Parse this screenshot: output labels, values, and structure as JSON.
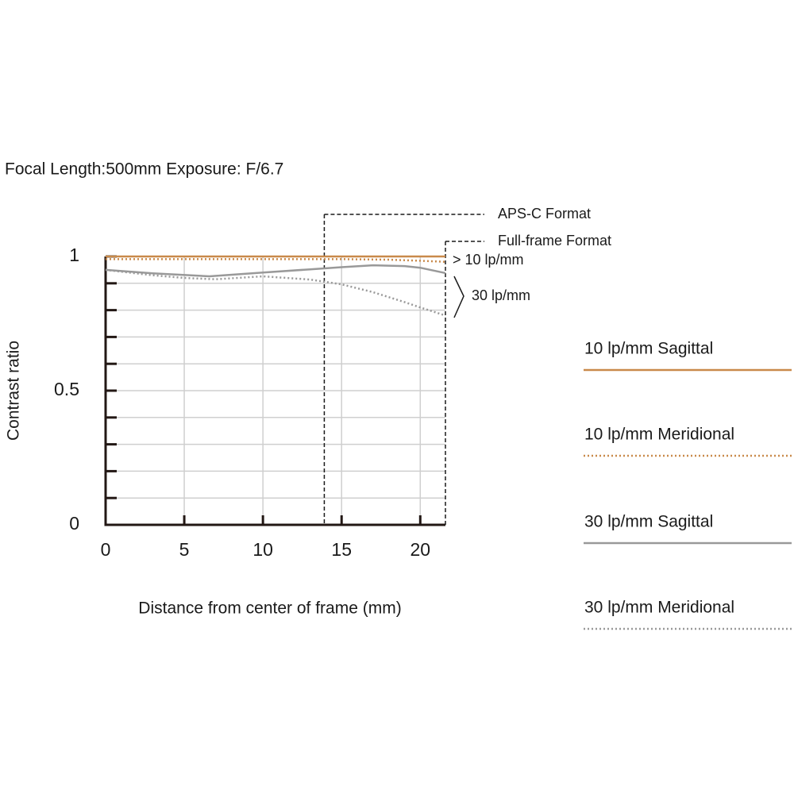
{
  "chart_data": {
    "type": "line",
    "title": "Focal Length:500mm  Exposure: F/6.7",
    "x_label": "Distance from center of frame (mm)",
    "y_label": "Contrast ratio",
    "xlim": [
      0,
      21.6
    ],
    "ylim": [
      0,
      1
    ],
    "xticks": [
      0,
      5,
      10,
      15,
      20
    ],
    "yticks": [
      0,
      0.5,
      1
    ],
    "yminorticks": [
      0.1,
      0.2,
      0.3,
      0.4,
      0.6,
      0.7,
      0.8,
      0.9
    ],
    "grid": true,
    "legend": "right",
    "series": [
      {
        "name": "10 lp/mm Sagittal",
        "color": "#c98a4b",
        "dash": "solid",
        "x": [
          0,
          5,
          10,
          15,
          20,
          21.6
        ],
        "values": [
          1.0,
          1.0,
          1.0,
          1.0,
          1.0,
          1.0
        ]
      },
      {
        "name": "10 lp/mm Meridional",
        "color": "#c98a4b",
        "dash": "dotted",
        "x": [
          0,
          5,
          10,
          15,
          18,
          20,
          21.6
        ],
        "values": [
          0.99,
          0.99,
          0.99,
          0.99,
          0.988,
          0.984,
          0.98
        ]
      },
      {
        "name": "30 lp/mm Sagittal",
        "color": "#999999",
        "dash": "solid",
        "x": [
          0,
          3,
          6.6,
          10,
          13,
          15,
          17,
          19,
          20,
          21.6
        ],
        "values": [
          0.95,
          0.937,
          0.926,
          0.94,
          0.952,
          0.96,
          0.967,
          0.964,
          0.958,
          0.938
        ]
      },
      {
        "name": "30 lp/mm Meridional",
        "color": "#999999",
        "dash": "dotted",
        "x": [
          0,
          3,
          5,
          7,
          10,
          13,
          15,
          17,
          19,
          20,
          21.6
        ],
        "values": [
          0.95,
          0.93,
          0.92,
          0.915,
          0.926,
          0.914,
          0.896,
          0.867,
          0.83,
          0.81,
          0.78
        ]
      }
    ],
    "markers": [
      {
        "label": "APS-C Format",
        "x": 13.9
      },
      {
        "label": "Full-frame Format",
        "x": 21.6
      }
    ],
    "annotations": [
      "> 10 lp/mm",
      "30 lp/mm"
    ]
  }
}
